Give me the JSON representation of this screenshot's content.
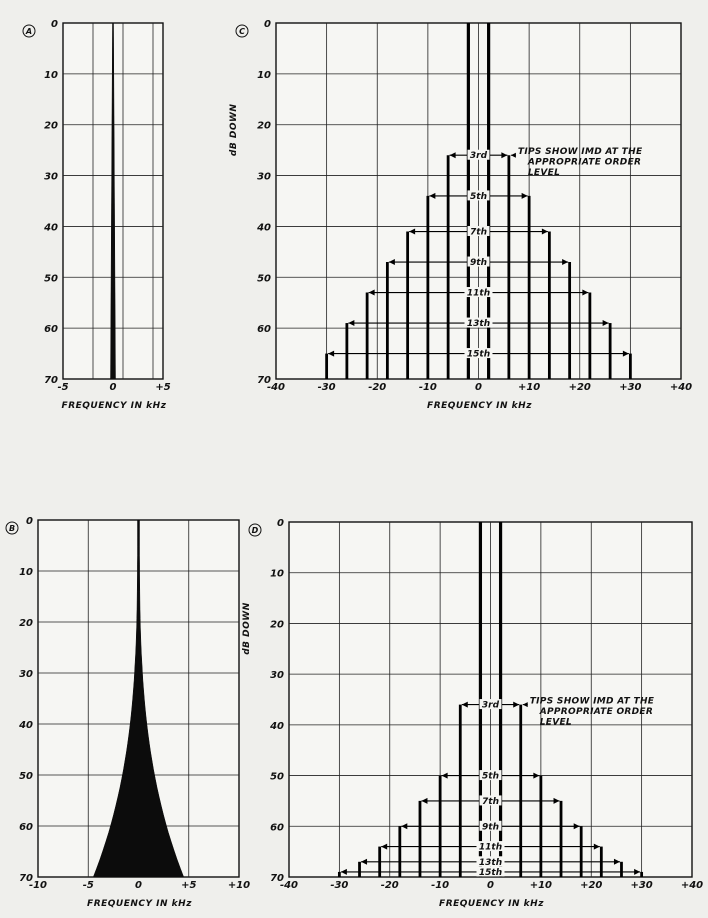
{
  "chart_data": [
    {
      "panel": "A",
      "type": "area",
      "ylabel": "dB DOWN",
      "xlabel": "FREQUENCY IN kHz",
      "x_ticks": [
        "-5",
        "0",
        "+5"
      ],
      "y_ticks": [
        "0",
        "10",
        "20",
        "30",
        "40",
        "50",
        "60",
        "70"
      ],
      "xlim": [
        -5,
        5
      ],
      "ylim": [
        0,
        70
      ],
      "y_inverted": true,
      "grid": true,
      "spectrum": {
        "center": 0,
        "half_width_at_70": 0.25,
        "top_half_width": 0.05,
        "shape": "narrow-spike"
      }
    },
    {
      "panel": "B",
      "type": "area",
      "ylabel": "dB DOWN",
      "xlabel": "FREQUENCY IN kHz",
      "x_ticks": [
        "-10",
        "-5",
        "0",
        "+5",
        "+10"
      ],
      "y_ticks": [
        "0",
        "10",
        "20",
        "30",
        "40",
        "50",
        "60",
        "70"
      ],
      "xlim": [
        -10,
        10
      ],
      "ylim": [
        0,
        70
      ],
      "y_inverted": true,
      "grid": true,
      "spectrum": {
        "center": 0,
        "half_width_at_70": 4.5,
        "top_half_width": 0.1,
        "shape": "concave-skirt"
      }
    },
    {
      "panel": "C",
      "type": "bar",
      "ylabel": "dB DOWN",
      "xlabel": "FREQUENCY IN kHz",
      "x_ticks": [
        "-40",
        "-30",
        "-20",
        "-10",
        "0",
        "+10",
        "+20",
        "+30",
        "+40"
      ],
      "y_ticks": [
        "0",
        "10",
        "20",
        "30",
        "40",
        "50",
        "60",
        "70"
      ],
      "xlim": [
        -40,
        40
      ],
      "ylim": [
        0,
        70
      ],
      "y_inverted": true,
      "grid": true,
      "annotation": [
        "TIPS SHOW IMD AT THE",
        "APPROPRIATE ORDER",
        "LEVEL"
      ],
      "tones": [
        -2,
        2
      ],
      "imd": [
        {
          "order": "3rd",
          "offset": 6,
          "level": 26
        },
        {
          "order": "5th",
          "offset": 10,
          "level": 34
        },
        {
          "order": "7th",
          "offset": 14,
          "level": 41
        },
        {
          "order": "9th",
          "offset": 18,
          "level": 47
        },
        {
          "order": "11th",
          "offset": 22,
          "level": 53
        },
        {
          "order": "13th",
          "offset": 26,
          "level": 59
        },
        {
          "order": "15th",
          "offset": 30,
          "level": 65
        }
      ]
    },
    {
      "panel": "D",
      "type": "bar",
      "ylabel": "dB DOWN",
      "xlabel": "FREQUENCY IN kHz",
      "x_ticks": [
        "-40",
        "-30",
        "-20",
        "-10",
        "0",
        "+10",
        "+20",
        "+30",
        "+40"
      ],
      "y_ticks": [
        "0",
        "10",
        "20",
        "30",
        "40",
        "50",
        "60",
        "70"
      ],
      "xlim": [
        -40,
        40
      ],
      "ylim": [
        0,
        70
      ],
      "y_inverted": true,
      "grid": true,
      "annotation": [
        "TIPS SHOW IMD AT THE",
        "APPROPRIATE ORDER",
        "LEVEL"
      ],
      "tones": [
        -2,
        2
      ],
      "imd": [
        {
          "order": "3rd",
          "offset": 6,
          "level": 36
        },
        {
          "order": "5th",
          "offset": 10,
          "level": 50
        },
        {
          "order": "7th",
          "offset": 14,
          "level": 55
        },
        {
          "order": "9th",
          "offset": 18,
          "level": 60
        },
        {
          "order": "11th",
          "offset": 22,
          "level": 64
        },
        {
          "order": "13th",
          "offset": 26,
          "level": 67
        },
        {
          "order": "15th",
          "offset": 30,
          "level": 69
        }
      ]
    }
  ]
}
